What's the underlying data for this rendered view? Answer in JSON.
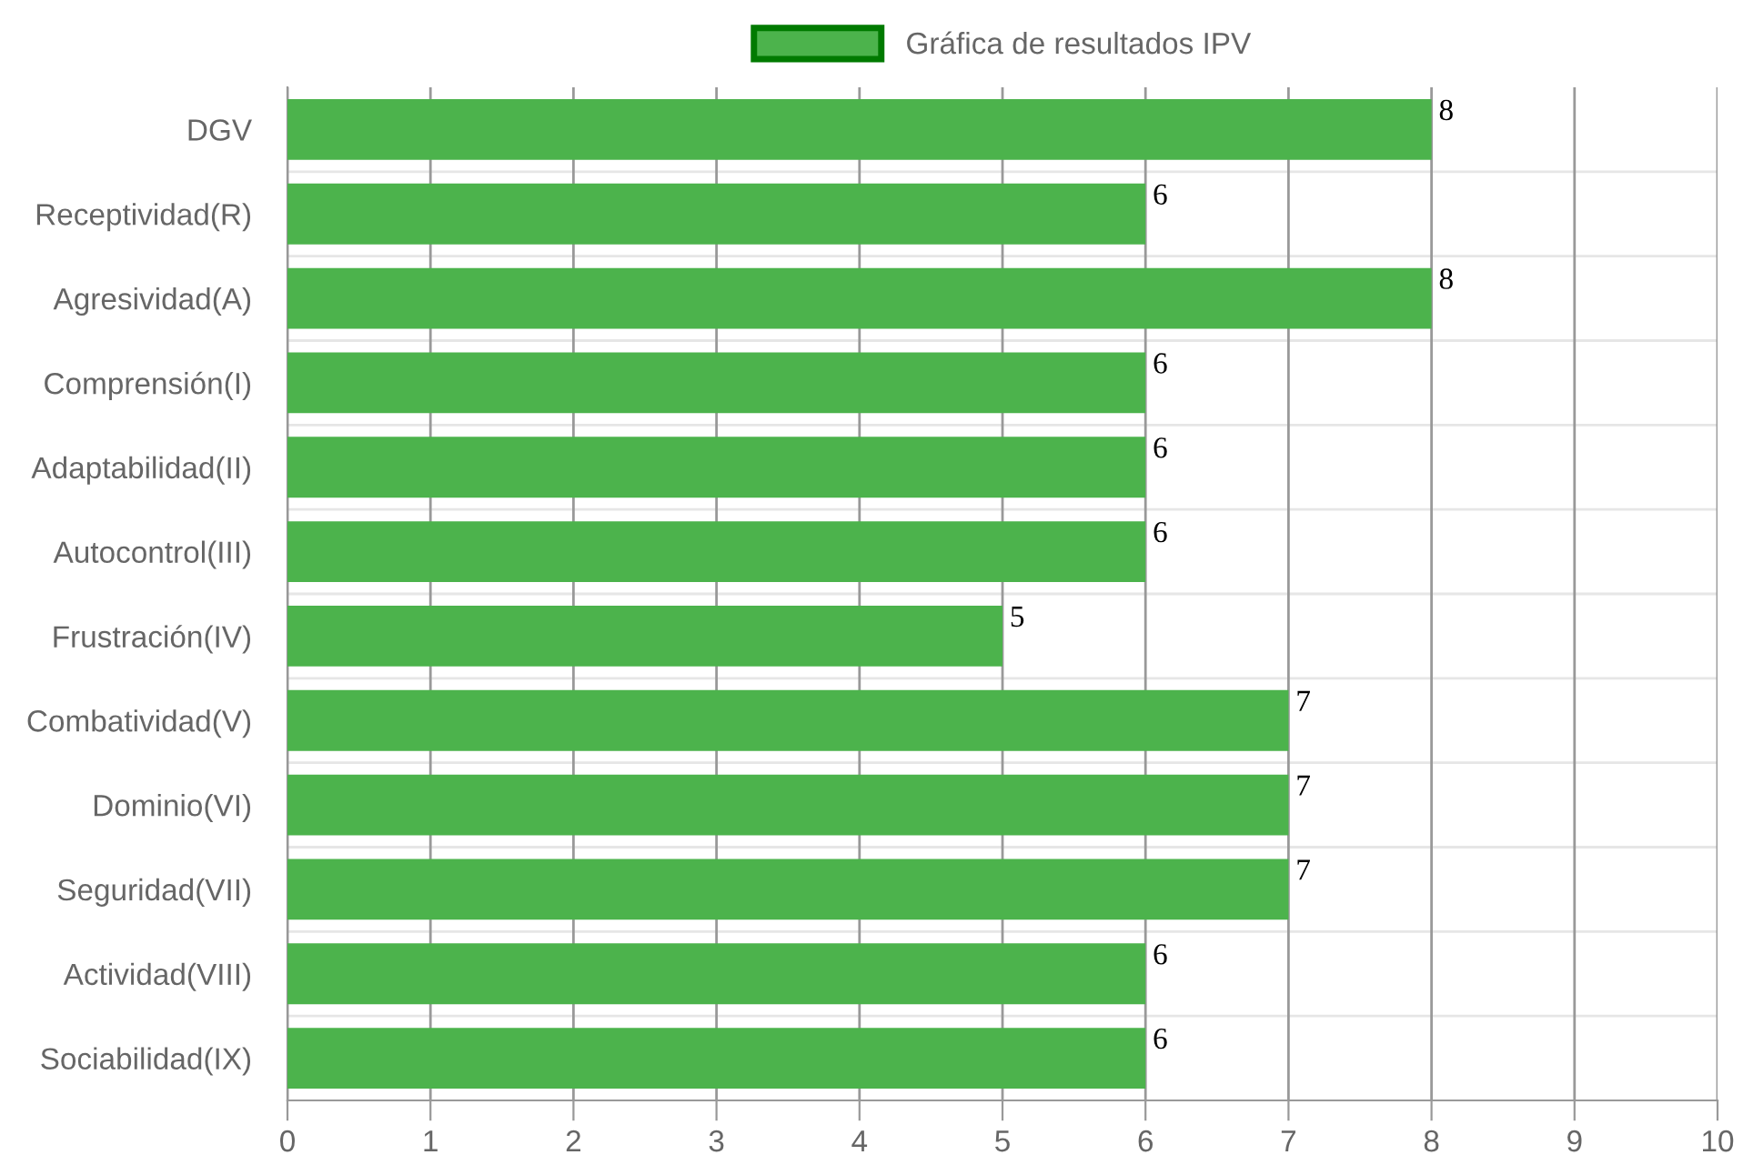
{
  "chart_data": {
    "type": "bar",
    "orientation": "horizontal",
    "categories": [
      "DGV",
      "Receptividad(R)",
      "Agresividad(A)",
      "Comprensión(I)",
      "Adaptabilidad(II)",
      "Autocontrol(III)",
      "Frustración(IV)",
      "Combatividad(V)",
      "Dominio(VI)",
      "Seguridad(VII)",
      "Actividad(VIII)",
      "Sociabilidad(IX)"
    ],
    "series": [
      {
        "name": "Gráfica de resultados IPV",
        "color": "#4cb34c",
        "values": [
          8,
          6,
          8,
          6,
          6,
          6,
          5,
          7,
          7,
          7,
          6,
          6
        ]
      }
    ],
    "xlim": [
      0,
      10
    ],
    "xticks": [
      0,
      1,
      2,
      3,
      4,
      5,
      6,
      7,
      8,
      9,
      10
    ],
    "grid": true,
    "legend": "top",
    "data_labels": true
  }
}
